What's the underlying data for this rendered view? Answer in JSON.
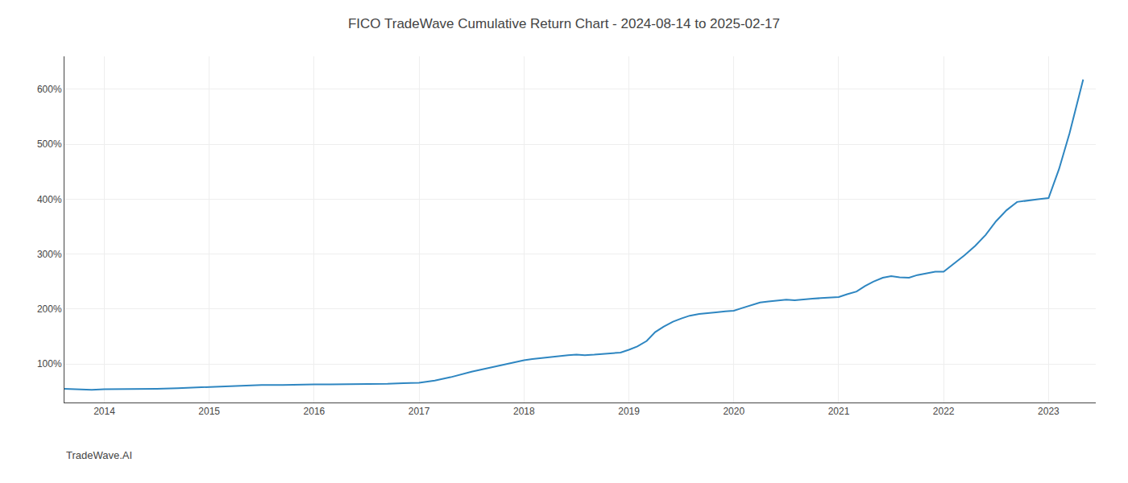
{
  "chart_data": {
    "type": "line",
    "title": "FICO TradeWave Cumulative Return Chart - 2024-08-14 to 2025-02-17",
    "annotations": [
      "TradeWave.AI"
    ],
    "x": [
      2013.62,
      2013.75,
      2013.88,
      2014.0,
      2014.15,
      2014.3,
      2014.5,
      2014.7,
      2014.85,
      2015.0,
      2015.15,
      2015.3,
      2015.5,
      2015.7,
      2015.85,
      2016.0,
      2016.15,
      2016.3,
      2016.5,
      2016.7,
      2016.85,
      2017.0,
      2017.15,
      2017.3,
      2017.5,
      2017.7,
      2017.85,
      2018.0,
      2018.08,
      2018.17,
      2018.25,
      2018.33,
      2018.42,
      2018.5,
      2018.58,
      2018.67,
      2018.75,
      2018.83,
      2018.92,
      2019.0,
      2019.08,
      2019.17,
      2019.25,
      2019.33,
      2019.42,
      2019.5,
      2019.58,
      2019.67,
      2019.75,
      2019.83,
      2019.92,
      2020.0,
      2020.08,
      2020.17,
      2020.25,
      2020.33,
      2020.42,
      2020.5,
      2020.58,
      2020.67,
      2020.75,
      2020.83,
      2020.92,
      2021.0,
      2021.08,
      2021.17,
      2021.25,
      2021.33,
      2021.42,
      2021.5,
      2021.58,
      2021.67,
      2021.75,
      2021.83,
      2021.92,
      2022.0,
      2022.1,
      2022.2,
      2022.3,
      2022.4,
      2022.5,
      2022.6,
      2022.7,
      2022.8,
      2022.9,
      2023.0,
      2023.1,
      2023.2,
      2023.33
    ],
    "values": [
      55,
      54,
      53,
      54,
      54,
      55,
      55,
      56,
      57,
      58,
      60,
      61,
      62,
      62,
      63,
      63,
      63,
      63,
      64,
      64,
      65,
      66,
      70,
      76,
      86,
      94,
      100,
      107,
      109,
      111,
      113,
      115,
      116,
      117,
      116,
      117,
      118,
      119,
      121,
      126,
      132,
      142,
      158,
      168,
      177,
      183,
      188,
      191,
      193,
      194,
      196,
      197,
      202,
      207,
      212,
      214,
      216,
      217,
      216,
      218,
      219,
      220,
      221,
      222,
      227,
      232,
      242,
      250,
      257,
      260,
      258,
      257,
      262,
      265,
      268,
      268,
      283,
      298,
      315,
      335,
      360,
      380,
      395,
      398,
      400,
      402,
      455,
      520,
      618
    ],
    "color": "#2e86c1",
    "xlim": [
      2013.62,
      2023.45
    ],
    "xticks": [
      2014,
      2015,
      2016,
      2017,
      2018,
      2019,
      2020,
      2021,
      2022,
      2023
    ],
    "ylim": [
      30,
      660
    ],
    "yticks": [
      {
        "value": 100,
        "label": "100%"
      },
      {
        "value": 200,
        "label": "200%"
      },
      {
        "value": 300,
        "label": "300%"
      },
      {
        "value": 400,
        "label": "400%"
      },
      {
        "value": 500,
        "label": "500%"
      },
      {
        "value": 600,
        "label": "600%"
      }
    ],
    "grid": true
  }
}
